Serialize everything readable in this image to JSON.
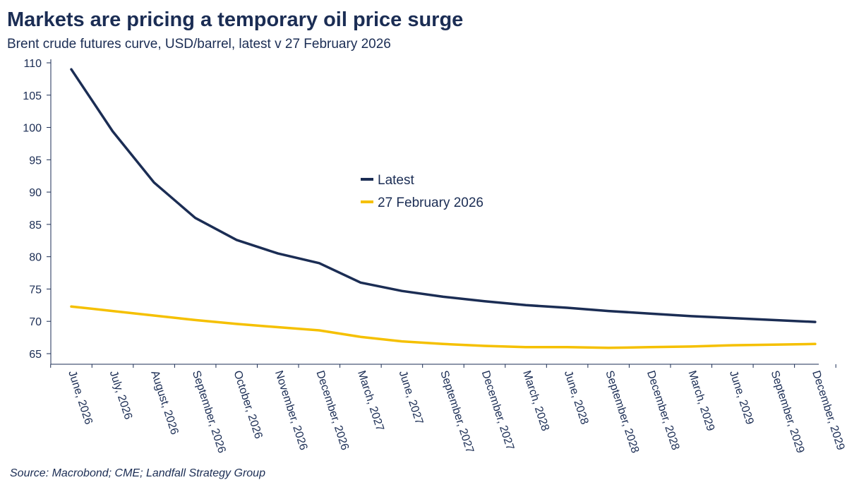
{
  "chart_data": {
    "type": "line",
    "title": "Markets are pricing a temporary oil price surge",
    "subtitle": "Brent crude futures curve, USD/barrel, latest v 27 February 2026",
    "source": "Source: Macrobond; CME; Landfall Strategy Group",
    "categories": [
      "June, 2026",
      "July, 2026",
      "August, 2026",
      "September, 2026",
      "October, 2026",
      "November, 2026",
      "December, 2026",
      "March, 2027",
      "June, 2027",
      "September, 2027",
      "December, 2027",
      "March, 2028",
      "June, 2028",
      "September, 2028",
      "December, 2028",
      "March, 2029",
      "June, 2029",
      "September, 2029",
      "December, 2029"
    ],
    "ylim": [
      65,
      110
    ],
    "yticks": [
      65,
      70,
      75,
      80,
      85,
      90,
      95,
      100,
      105,
      110
    ],
    "grid": false,
    "legend_position": "center",
    "series": [
      {
        "name": "Latest",
        "color": "#1b2d54",
        "values": [
          109,
          99.4,
          91.5,
          86,
          82.6,
          80.5,
          79,
          76,
          74.7,
          73.8,
          73.1,
          72.5,
          72.1,
          71.6,
          71.2,
          70.8,
          70.5,
          70.2,
          69.9
        ]
      },
      {
        "name": "27 February 2026",
        "color": "#f5c000",
        "values": [
          72.3,
          71.6,
          70.9,
          70.2,
          69.6,
          69.1,
          68.6,
          67.6,
          66.9,
          66.5,
          66.2,
          66.0,
          66.0,
          65.9,
          66.0,
          66.1,
          66.3,
          66.4,
          66.5
        ]
      }
    ]
  }
}
